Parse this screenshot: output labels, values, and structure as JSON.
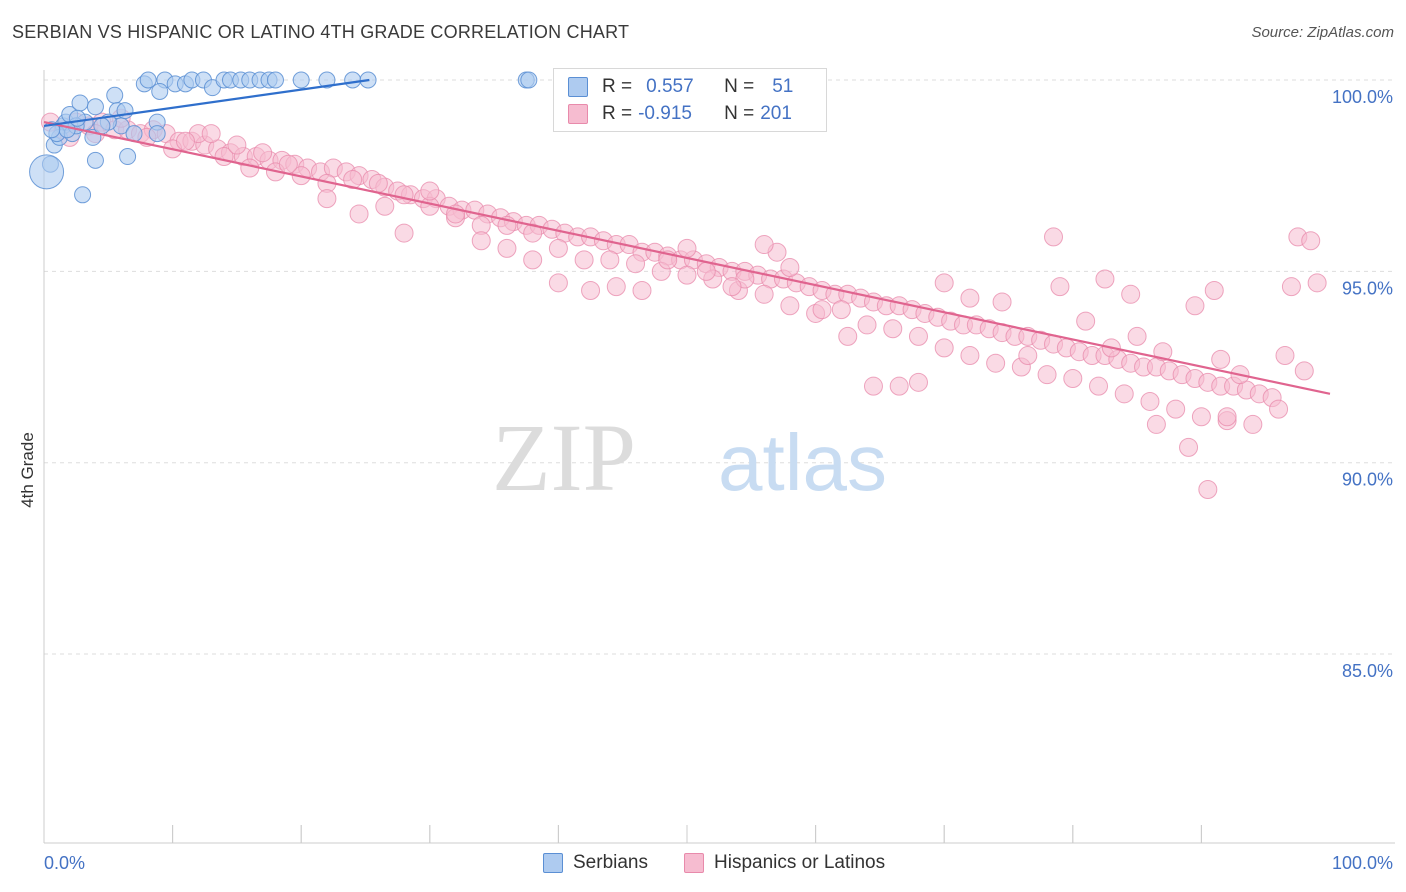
{
  "header": {
    "title": "SERBIAN VS HISPANIC OR LATINO 4TH GRADE CORRELATION CHART",
    "source": "Source: ZipAtlas.com"
  },
  "legend": {
    "r_label": "R =",
    "n_label": "N =",
    "rows": [
      {
        "r": "0.557",
        "n": "51"
      },
      {
        "r": "-0.915",
        "n": "201"
      }
    ]
  },
  "colors": {
    "serbians_fill": "#aecbf0",
    "serbians_stroke": "#5b8fd4",
    "serbians_line": "#2f6fcc",
    "hispanic_fill": "#f6bcd0",
    "hispanic_stroke": "#e88aab",
    "hispanic_line": "#e0648f",
    "tick_label": "#4472c4",
    "grid": "#dddddd"
  },
  "chart_data": {
    "type": "scatter",
    "title": "SERBIAN VS HISPANIC OR LATINO 4TH GRADE CORRELATION CHART",
    "xlabel": "",
    "ylabel": "4th Grade",
    "xlim": [
      0,
      100
    ],
    "ylim": [
      80.0,
      100.4
    ],
    "x_tick_labels": [
      "0.0%",
      "100.0%"
    ],
    "y_ticks": [
      100,
      95,
      90,
      85
    ],
    "y_tick_labels": [
      "100.0%",
      "95.0%",
      "90.0%",
      "85.0%"
    ],
    "grid": true,
    "watermark": {
      "part1": "ZIP",
      "part2": "atlas"
    },
    "legend_position": "bottom-center",
    "series": [
      {
        "name": "Serbians",
        "r": 0.557,
        "n": 51,
        "trend": {
          "x": [
            0,
            25.3
          ],
          "y": [
            98.8,
            100.0
          ]
        },
        "points": [
          [
            1.5,
            98.8
          ],
          [
            1.7,
            98.9
          ],
          [
            2.0,
            99.1
          ],
          [
            2.8,
            99.4
          ],
          [
            3.2,
            98.9
          ],
          [
            4.0,
            99.3
          ],
          [
            5.5,
            99.6
          ],
          [
            5.7,
            99.2
          ],
          [
            6.0,
            98.8
          ],
          [
            7.8,
            99.9
          ],
          [
            8.1,
            100
          ],
          [
            9.4,
            100
          ],
          [
            10.2,
            99.9
          ],
          [
            11.0,
            99.9
          ],
          [
            11.5,
            100
          ],
          [
            12.4,
            100
          ],
          [
            13.1,
            99.8
          ],
          [
            14.0,
            100
          ],
          [
            14.5,
            100
          ],
          [
            15.3,
            100
          ],
          [
            16.0,
            100
          ],
          [
            16.8,
            100
          ],
          [
            17.5,
            100
          ],
          [
            18.0,
            100
          ],
          [
            20.0,
            100
          ],
          [
            22.0,
            100
          ],
          [
            24.0,
            100
          ],
          [
            25.2,
            100
          ],
          [
            37.5,
            100
          ],
          [
            37.7,
            100
          ],
          [
            0.8,
            98.3
          ],
          [
            0.5,
            97.8
          ],
          [
            1.2,
            98.5
          ],
          [
            3.8,
            98.5
          ],
          [
            4.0,
            97.9
          ],
          [
            6.5,
            98.0
          ],
          [
            3.0,
            97.0
          ],
          [
            1.0,
            98.6
          ],
          [
            2.2,
            98.6
          ],
          [
            2.5,
            98.8
          ],
          [
            1.8,
            98.7
          ],
          [
            8.8,
            98.9
          ],
          [
            8.8,
            98.6
          ],
          [
            7.0,
            98.6
          ],
          [
            9.0,
            99.7
          ],
          [
            6.3,
            99.2
          ],
          [
            5.0,
            98.9
          ],
          [
            2.6,
            99.0
          ],
          [
            0.6,
            98.7
          ],
          [
            4.5,
            98.8
          ],
          [
            0.2,
            97.6
          ]
        ]
      },
      {
        "name": "Hispanics or Latinos",
        "r": -0.915,
        "n": 201,
        "trend": {
          "x": [
            0,
            100
          ],
          "y": [
            98.9,
            91.8
          ]
        },
        "points": [
          [
            0.5,
            98.9
          ],
          [
            1.5,
            98.7
          ],
          [
            2.5,
            98.9
          ],
          [
            3.5,
            98.8
          ],
          [
            4.5,
            98.9
          ],
          [
            5.5,
            98.7
          ],
          [
            6.5,
            98.7
          ],
          [
            7.5,
            98.6
          ],
          [
            8.5,
            98.7
          ],
          [
            9.5,
            98.6
          ],
          [
            10.5,
            98.4
          ],
          [
            11.5,
            98.4
          ],
          [
            12.5,
            98.3
          ],
          [
            13.5,
            98.2
          ],
          [
            14.5,
            98.1
          ],
          [
            15.5,
            98.0
          ],
          [
            16.5,
            98.0
          ],
          [
            17.5,
            97.9
          ],
          [
            18.5,
            97.9
          ],
          [
            19.5,
            97.8
          ],
          [
            20.5,
            97.7
          ],
          [
            21.5,
            97.6
          ],
          [
            22.5,
            97.7
          ],
          [
            23.5,
            97.6
          ],
          [
            24.5,
            97.5
          ],
          [
            25.5,
            97.4
          ],
          [
            26.5,
            97.2
          ],
          [
            27.5,
            97.1
          ],
          [
            28.5,
            97.0
          ],
          [
            29.5,
            96.9
          ],
          [
            30.5,
            96.9
          ],
          [
            31.5,
            96.7
          ],
          [
            32.5,
            96.6
          ],
          [
            33.5,
            96.6
          ],
          [
            34.5,
            96.5
          ],
          [
            35.5,
            96.4
          ],
          [
            36.5,
            96.3
          ],
          [
            37.5,
            96.2
          ],
          [
            38.5,
            96.2
          ],
          [
            39.5,
            96.1
          ],
          [
            40.5,
            96.0
          ],
          [
            41.5,
            95.9
          ],
          [
            42.5,
            95.9
          ],
          [
            43.5,
            95.8
          ],
          [
            44.5,
            95.7
          ],
          [
            45.5,
            95.7
          ],
          [
            46.5,
            95.5
          ],
          [
            47.5,
            95.5
          ],
          [
            48.5,
            95.4
          ],
          [
            49.5,
            95.3
          ],
          [
            50.5,
            95.3
          ],
          [
            51.5,
            95.2
          ],
          [
            52.5,
            95.1
          ],
          [
            53.5,
            95.0
          ],
          [
            54.5,
            95.0
          ],
          [
            55.5,
            94.9
          ],
          [
            56.5,
            94.8
          ],
          [
            57.5,
            94.8
          ],
          [
            58.5,
            94.7
          ],
          [
            59.5,
            94.6
          ],
          [
            60.5,
            94.5
          ],
          [
            61.5,
            94.4
          ],
          [
            62.5,
            94.4
          ],
          [
            63.5,
            94.3
          ],
          [
            64.5,
            94.2
          ],
          [
            65.5,
            94.1
          ],
          [
            66.5,
            94.1
          ],
          [
            67.5,
            94.0
          ],
          [
            68.5,
            93.9
          ],
          [
            69.5,
            93.8
          ],
          [
            70.5,
            93.7
          ],
          [
            71.5,
            93.6
          ],
          [
            72.5,
            93.6
          ],
          [
            73.5,
            93.5
          ],
          [
            74.5,
            93.4
          ],
          [
            75.5,
            93.3
          ],
          [
            76.5,
            93.3
          ],
          [
            77.5,
            93.2
          ],
          [
            78.5,
            93.1
          ],
          [
            79.5,
            93.0
          ],
          [
            80.5,
            92.9
          ],
          [
            81.5,
            92.8
          ],
          [
            82.5,
            92.8
          ],
          [
            83.5,
            92.7
          ],
          [
            84.5,
            92.6
          ],
          [
            85.5,
            92.5
          ],
          [
            86.5,
            92.5
          ],
          [
            87.5,
            92.4
          ],
          [
            88.5,
            92.3
          ],
          [
            89.5,
            92.2
          ],
          [
            90.5,
            92.1
          ],
          [
            91.5,
            92.0
          ],
          [
            92.5,
            92.0
          ],
          [
            93.5,
            91.9
          ],
          [
            94.5,
            91.8
          ],
          [
            95.5,
            91.7
          ],
          [
            2.0,
            98.5
          ],
          [
            4.0,
            98.6
          ],
          [
            6.0,
            99.0
          ],
          [
            8.0,
            98.5
          ],
          [
            10.0,
            98.2
          ],
          [
            12.0,
            98.6
          ],
          [
            14.0,
            98.0
          ],
          [
            16.0,
            97.7
          ],
          [
            18.0,
            97.6
          ],
          [
            20.0,
            97.5
          ],
          [
            22.0,
            97.3
          ],
          [
            24.0,
            97.4
          ],
          [
            26.0,
            97.3
          ],
          [
            28.0,
            97.0
          ],
          [
            30.0,
            96.7
          ],
          [
            32.0,
            96.4
          ],
          [
            34.0,
            96.2
          ],
          [
            36.0,
            96.2
          ],
          [
            38.0,
            96.0
          ],
          [
            40.0,
            95.6
          ],
          [
            42.0,
            95.3
          ],
          [
            44.0,
            95.3
          ],
          [
            46.0,
            95.2
          ],
          [
            48.0,
            95.0
          ],
          [
            50.0,
            94.9
          ],
          [
            52.0,
            94.8
          ],
          [
            54.0,
            94.5
          ],
          [
            56.0,
            94.4
          ],
          [
            58.0,
            94.1
          ],
          [
            60.0,
            93.9
          ],
          [
            62.0,
            94.0
          ],
          [
            64.0,
            93.6
          ],
          [
            66.0,
            93.5
          ],
          [
            68.0,
            93.3
          ],
          [
            70.0,
            93.0
          ],
          [
            72.0,
            92.8
          ],
          [
            74.0,
            92.6
          ],
          [
            76.0,
            92.5
          ],
          [
            78.0,
            92.3
          ],
          [
            80.0,
            92.2
          ],
          [
            82.0,
            92.0
          ],
          [
            84.0,
            91.8
          ],
          [
            86.0,
            91.6
          ],
          [
            88.0,
            91.4
          ],
          [
            90.0,
            91.2
          ],
          [
            92.0,
            91.1
          ],
          [
            94.0,
            91.0
          ],
          [
            96.0,
            91.4
          ],
          [
            98.0,
            92.4
          ],
          [
            96.5,
            92.8
          ],
          [
            97.0,
            94.6
          ],
          [
            99.0,
            94.7
          ],
          [
            97.5,
            95.9
          ],
          [
            98.5,
            95.8
          ],
          [
            91.5,
            92.7
          ],
          [
            92.0,
            91.2
          ],
          [
            89.0,
            90.4
          ],
          [
            90.5,
            89.3
          ],
          [
            86.5,
            91.0
          ],
          [
            83.0,
            93.0
          ],
          [
            85.0,
            93.3
          ],
          [
            87.0,
            92.9
          ],
          [
            89.5,
            94.1
          ],
          [
            91.0,
            94.5
          ],
          [
            93.0,
            92.3
          ],
          [
            81.0,
            93.7
          ],
          [
            79.0,
            94.6
          ],
          [
            78.5,
            95.9
          ],
          [
            82.5,
            94.8
          ],
          [
            84.5,
            94.4
          ],
          [
            74.5,
            94.2
          ],
          [
            72.0,
            94.3
          ],
          [
            76.5,
            92.8
          ],
          [
            70.0,
            94.7
          ],
          [
            68.0,
            92.1
          ],
          [
            66.5,
            92.0
          ],
          [
            64.5,
            92.0
          ],
          [
            62.5,
            93.3
          ],
          [
            60.5,
            94.0
          ],
          [
            58.0,
            95.1
          ],
          [
            57.0,
            95.5
          ],
          [
            56.0,
            95.7
          ],
          [
            54.5,
            94.8
          ],
          [
            53.5,
            94.6
          ],
          [
            51.5,
            95.0
          ],
          [
            50.0,
            95.6
          ],
          [
            48.5,
            95.3
          ],
          [
            46.5,
            94.5
          ],
          [
            44.5,
            94.6
          ],
          [
            42.5,
            94.5
          ],
          [
            40.0,
            94.7
          ],
          [
            38.0,
            95.3
          ],
          [
            36.0,
            95.6
          ],
          [
            34.0,
            95.8
          ],
          [
            32.0,
            96.5
          ],
          [
            30.0,
            97.1
          ],
          [
            28.0,
            96.0
          ],
          [
            26.5,
            96.7
          ],
          [
            24.5,
            96.5
          ],
          [
            22.0,
            96.9
          ],
          [
            19.0,
            97.8
          ],
          [
            17.0,
            98.1
          ],
          [
            15.0,
            98.3
          ],
          [
            13.0,
            98.6
          ],
          [
            11.0,
            98.4
          ]
        ]
      }
    ]
  }
}
